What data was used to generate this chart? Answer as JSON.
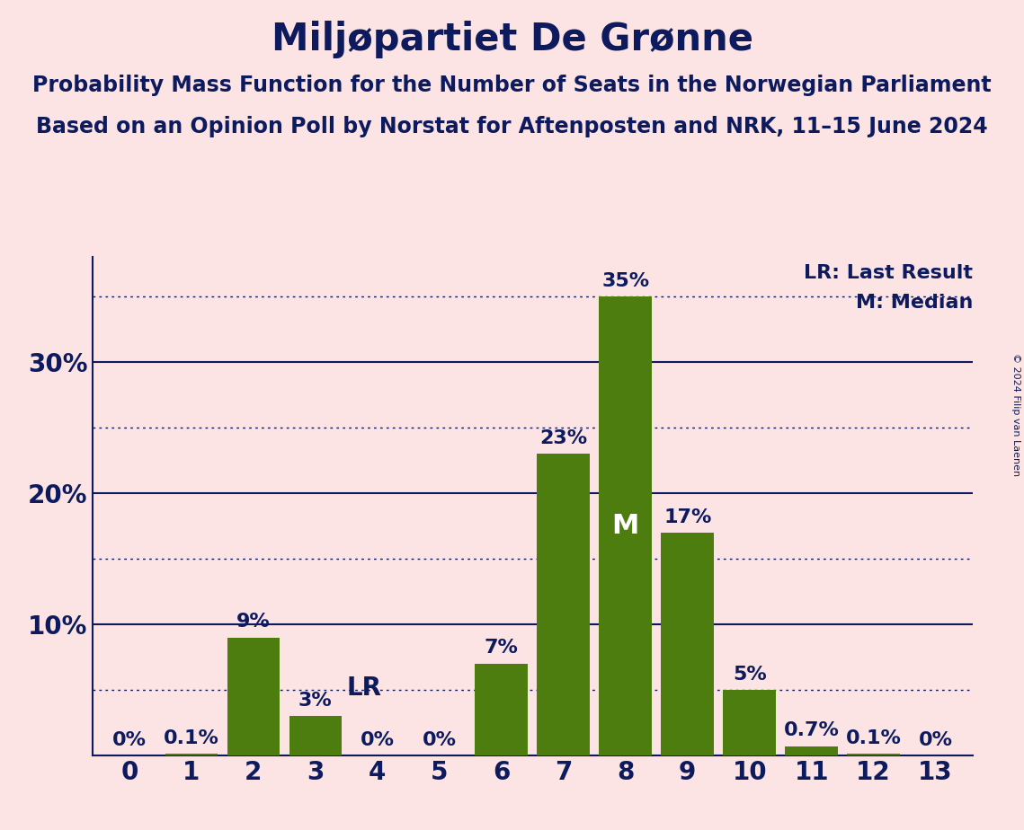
{
  "title": "Miljøpartiet De Grønne",
  "subtitle1": "Probability Mass Function for the Number of Seats in the Norwegian Parliament",
  "subtitle2": "Based on an Opinion Poll by Norstat for Aftenposten and NRK, 11–15 June 2024",
  "copyright": "© 2024 Filip van Laenen",
  "seats": [
    0,
    1,
    2,
    3,
    4,
    5,
    6,
    7,
    8,
    9,
    10,
    11,
    12,
    13
  ],
  "probabilities": [
    0.0,
    0.1,
    9.0,
    3.0,
    0.0,
    0.0,
    7.0,
    23.0,
    35.0,
    17.0,
    5.0,
    0.7,
    0.1,
    0.0
  ],
  "labels": [
    "0%",
    "0.1%",
    "9%",
    "3%",
    "0%",
    "0%",
    "7%",
    "23%",
    "35%",
    "17%",
    "5%",
    "0.7%",
    "0.1%",
    "0%"
  ],
  "bar_color": "#4d7c0f",
  "background_color": "#fce4e4",
  "text_color": "#0d1b5e",
  "yticks": [
    0,
    10,
    20,
    30
  ],
  "ytick_labels": [
    "",
    "10%",
    "20%",
    "30%"
  ],
  "ylim": [
    0,
    38
  ],
  "lr_seat": 3,
  "median_seat": 8,
  "legend_lr": "LR: Last Result",
  "legend_m": "M: Median",
  "lr_label": "LR",
  "median_label": "M",
  "dotted_levels": [
    5,
    15,
    25,
    35
  ],
  "solid_levels": [
    10,
    20,
    30
  ],
  "title_fontsize": 30,
  "subtitle_fontsize": 17,
  "tick_fontsize": 20,
  "bar_label_fontsize": 16,
  "legend_fontsize": 16
}
